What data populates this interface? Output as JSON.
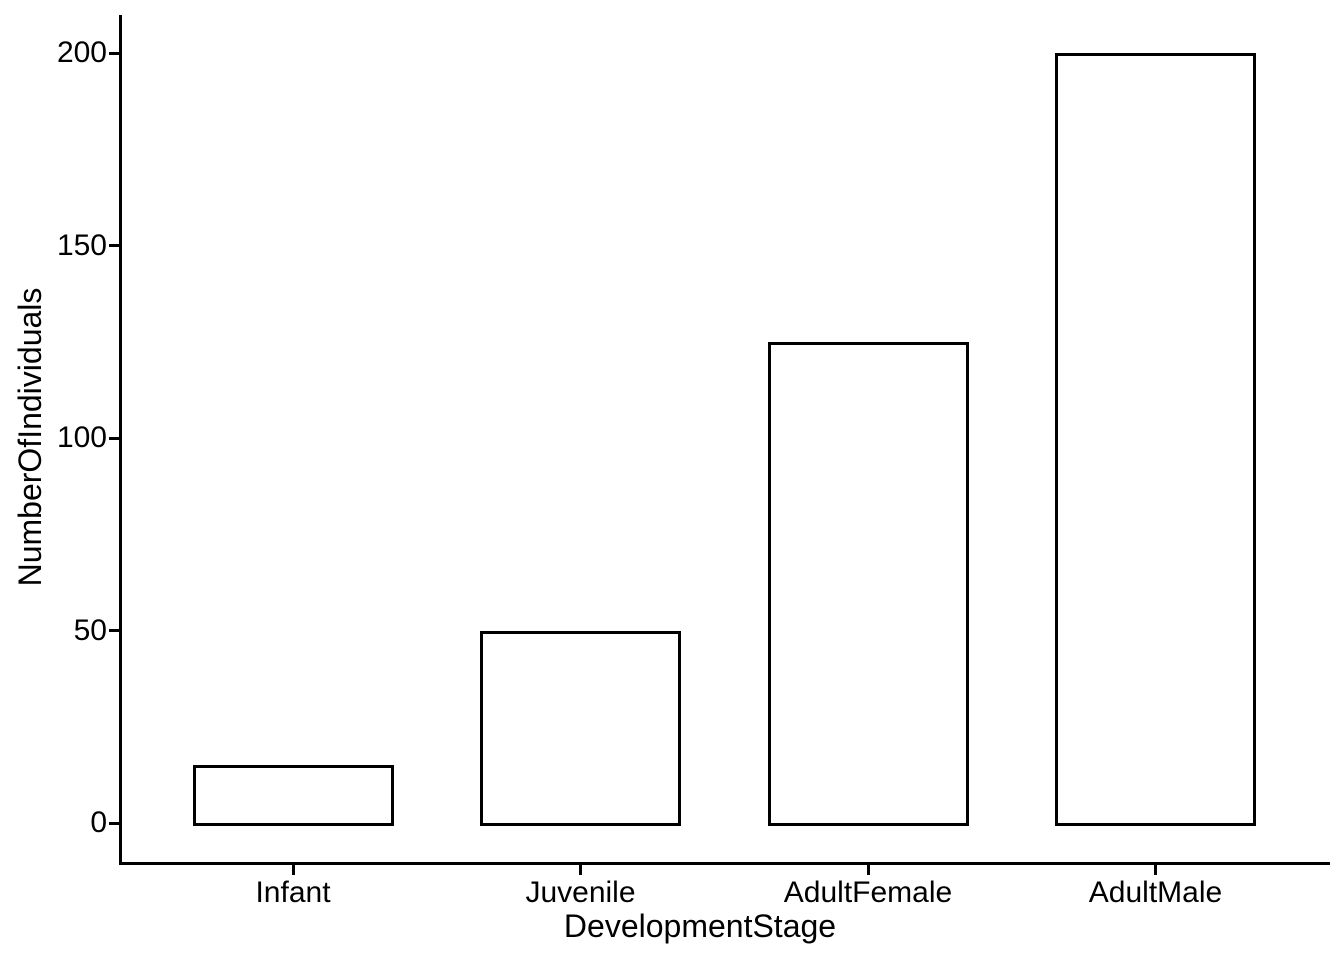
{
  "chart_data": {
    "type": "bar",
    "title": "",
    "xlabel": "DevelopmentStage",
    "ylabel": "NumberOfIndividuals",
    "categories": [
      "Infant",
      "Juvenile",
      "AdultFemale",
      "AdultMale"
    ],
    "values": [
      15,
      50,
      125,
      200
    ],
    "yticks": [
      0,
      50,
      100,
      150,
      200
    ],
    "ylim": [
      0,
      200
    ],
    "grid": "off",
    "legend": "none",
    "colors": {
      "background": "#FFFFFF",
      "bar_fill": "#FFFFFF",
      "bar_stroke": "#000000",
      "axis_line": "#000000",
      "text": "#000000"
    }
  }
}
